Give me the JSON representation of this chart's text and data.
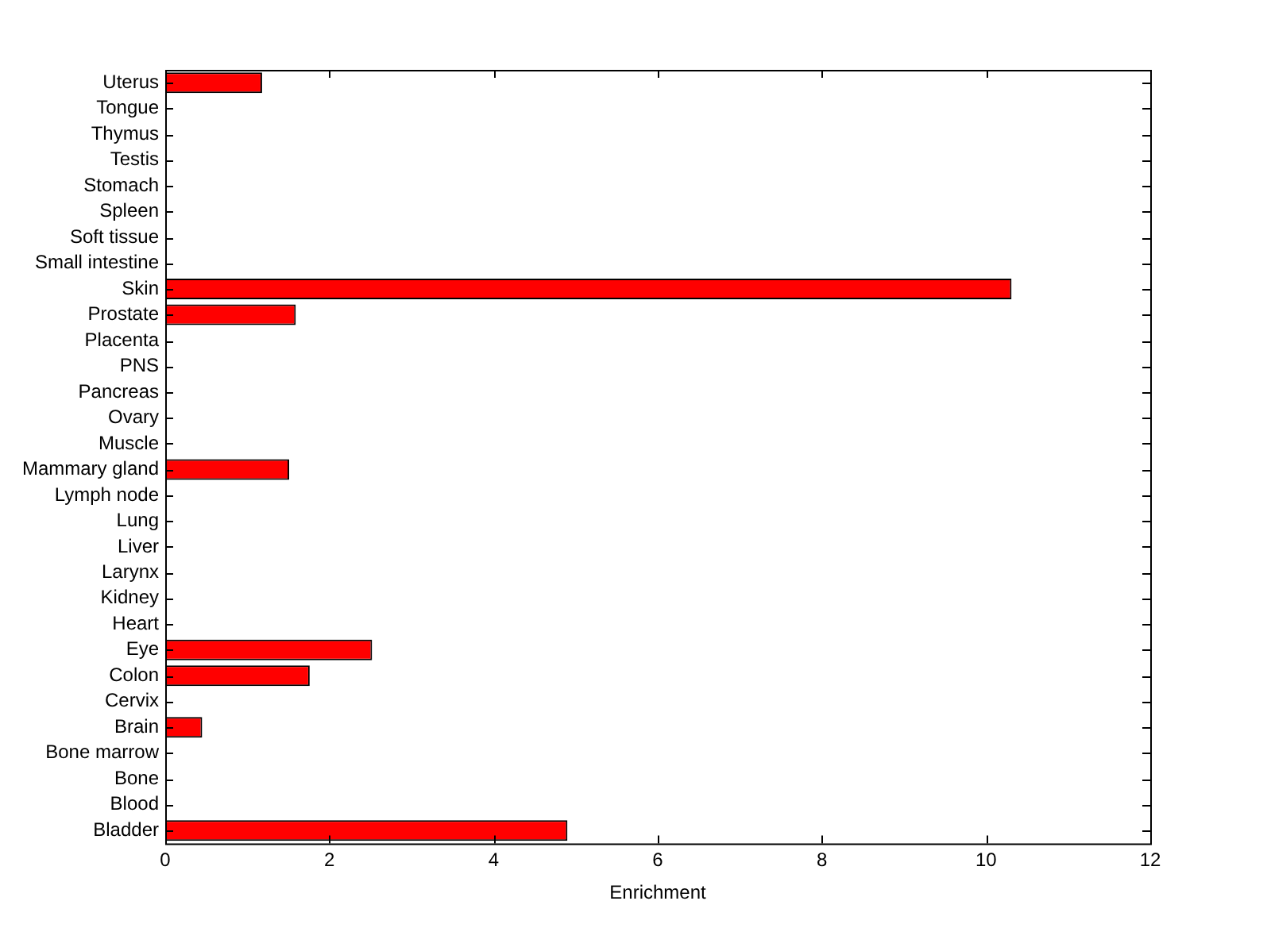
{
  "chart_data": {
    "type": "bar",
    "orientation": "horizontal",
    "xlabel": "Enrichment",
    "categories": [
      "Uterus",
      "Tongue",
      "Thymus",
      "Testis",
      "Stomach",
      "Spleen",
      "Soft tissue",
      "Small intestine",
      "Skin",
      "Prostate",
      "Placenta",
      "PNS",
      "Pancreas",
      "Ovary",
      "Muscle",
      "Mammary gland",
      "Lymph node",
      "Lung",
      "Liver",
      "Larynx",
      "Kidney",
      "Heart",
      "Eye",
      "Colon",
      "Cervix",
      "Brain",
      "Bone marrow",
      "Bone",
      "Blood",
      "Bladder"
    ],
    "values": [
      1.18,
      0,
      0,
      0,
      0,
      0,
      0,
      0,
      10.31,
      1.59,
      0,
      0,
      0,
      0,
      0,
      1.51,
      0,
      0,
      0,
      0,
      0,
      0,
      2.52,
      1.76,
      0,
      0.45,
      0,
      0,
      0,
      4.9
    ],
    "color": "#ff0000",
    "xlim": [
      0,
      12
    ],
    "xticks": [
      0,
      2,
      4,
      6,
      8,
      10,
      12
    ],
    "grid": false,
    "legend": false
  }
}
